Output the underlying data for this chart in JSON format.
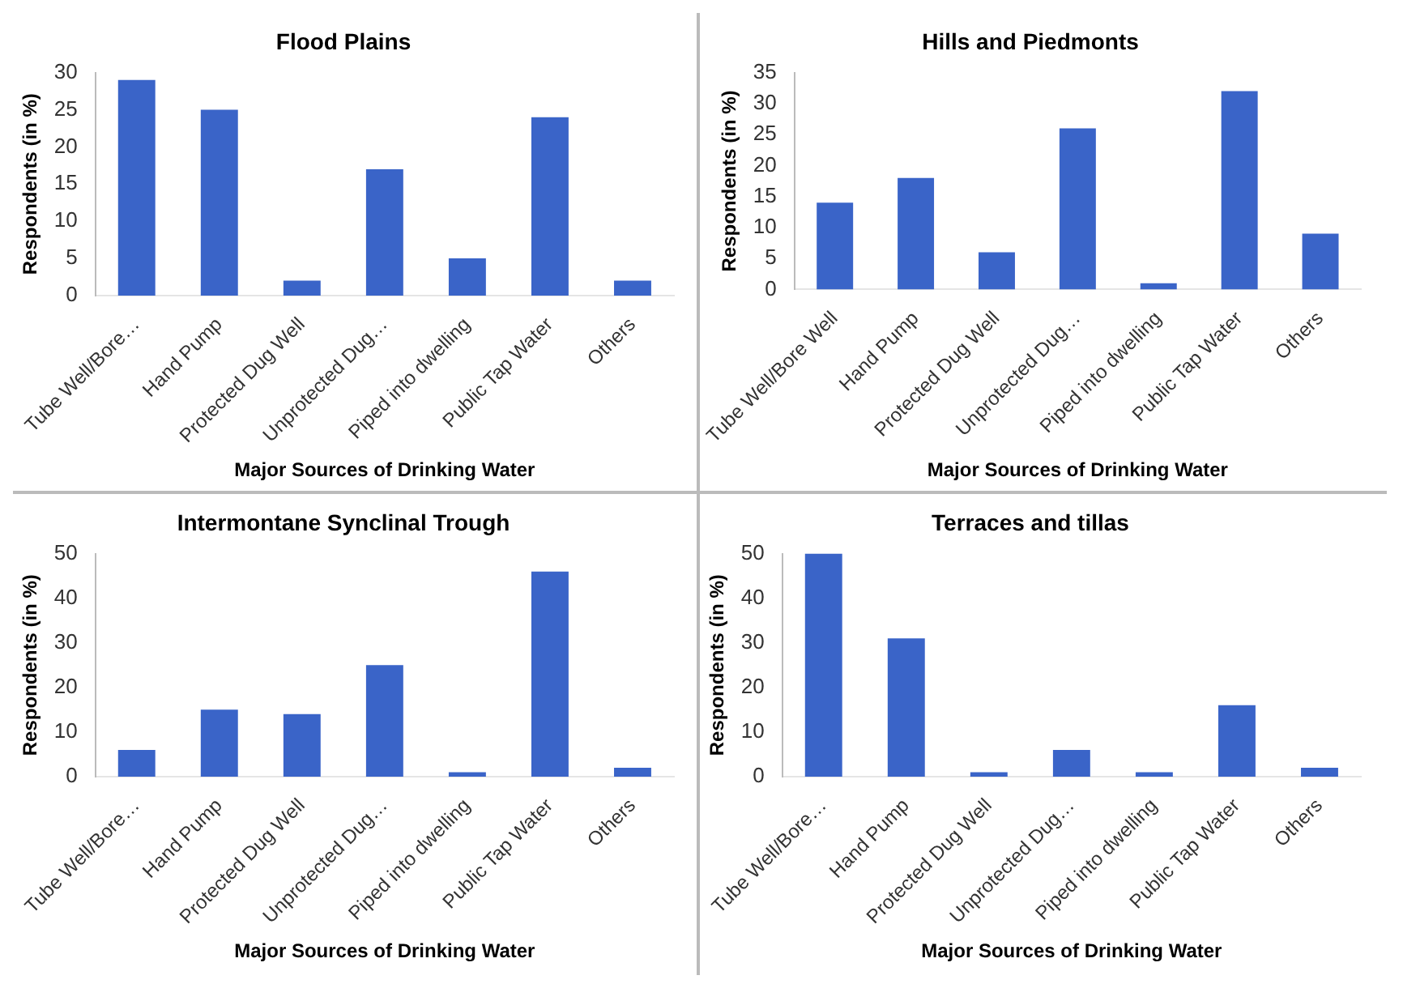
{
  "chart_data": [
    {
      "type": "bar",
      "title": "Flood Plains",
      "xlabel": "Major Sources of Drinking Water",
      "ylabel": "Respondents (in %)",
      "categories": [
        "Tube Well/Bore…",
        "Hand Pump",
        "Protected Dug Well",
        "Unprotected Dug…",
        "Piped into dwelling",
        "Public Tap Water",
        "Others"
      ],
      "values": [
        29,
        25,
        2,
        17,
        5,
        24,
        2
      ],
      "color": "#3a64c8",
      "ylim": [
        0,
        30
      ],
      "yticks": [
        0,
        5,
        10,
        15,
        20,
        25,
        30
      ]
    },
    {
      "type": "bar",
      "title": "Hills and Piedmonts",
      "xlabel": "Major Sources of Drinking Water",
      "ylabel": "Respondents (in %)",
      "categories": [
        "Tube Well/Bore Well",
        "Hand Pump",
        "Protected Dug Well",
        "Unprotected Dug…",
        "Piped into dwelling",
        "Public Tap Water",
        "Others"
      ],
      "values": [
        14,
        18,
        6,
        26,
        1,
        32,
        9
      ],
      "color": "#3a64c8",
      "ylim": [
        0,
        35
      ],
      "yticks": [
        0,
        5,
        10,
        15,
        20,
        25,
        30,
        35
      ]
    },
    {
      "type": "bar",
      "title": "Intermontane Synclinal Trough",
      "xlabel": "Major Sources of Drinking Water",
      "ylabel": "Respondents (in %)",
      "categories": [
        "Tube Well/Bore…",
        "Hand Pump",
        "Protected Dug Well",
        "Unprotected Dug…",
        "Piped into dwelling",
        "Public Tap Water",
        "Others"
      ],
      "values": [
        6,
        15,
        14,
        25,
        1,
        46,
        2
      ],
      "color": "#3a64c8",
      "ylim": [
        0,
        50
      ],
      "yticks": [
        0,
        10,
        20,
        30,
        40,
        50
      ]
    },
    {
      "type": "bar",
      "title": "Terraces and tillas",
      "xlabel": "Major Sources of Drinking Water",
      "ylabel": "Respondents (in %)",
      "categories": [
        "Tube Well/Bore…",
        "Hand Pump",
        "Protected Dug Well",
        "Unprotected Dug…",
        "Piped into dwelling",
        "Public Tap Water",
        "Others"
      ],
      "values": [
        50,
        31,
        1,
        6,
        1,
        16,
        2
      ],
      "color": "#3a64c8",
      "ylim": [
        0,
        50
      ],
      "yticks": [
        0,
        10,
        20,
        30,
        40,
        50
      ]
    }
  ]
}
